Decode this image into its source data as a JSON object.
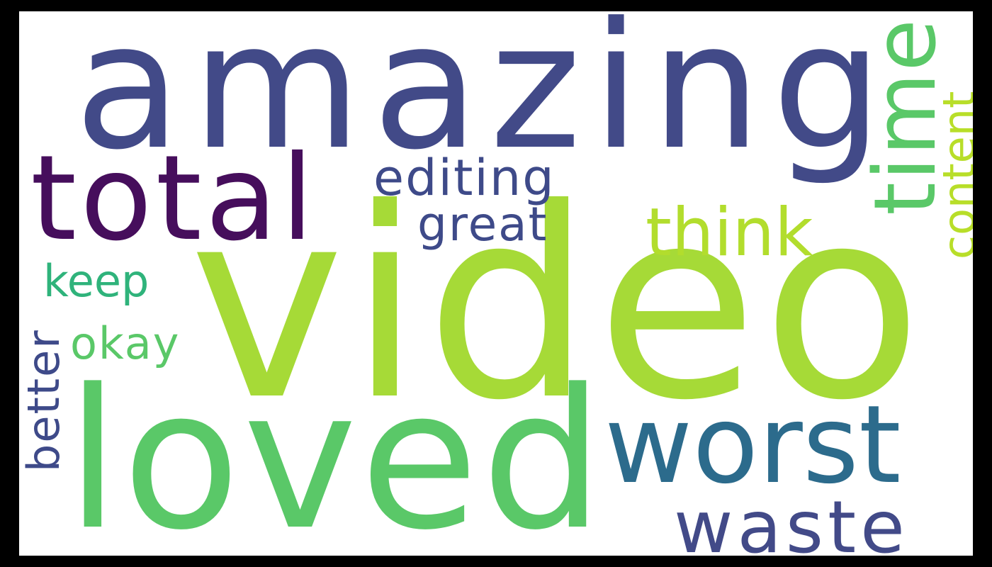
{
  "words": {
    "amazing": {
      "text": "amazing",
      "color": "#424a88"
    },
    "video": {
      "text": "video",
      "color": "#a6da37"
    },
    "loved": {
      "text": "loved",
      "color": "#5ac868"
    },
    "total": {
      "text": "total",
      "color": "#460e5c"
    },
    "worst": {
      "text": "worst",
      "color": "#2c6b8c"
    },
    "waste": {
      "text": "waste",
      "color": "#424a88"
    },
    "think": {
      "text": "think",
      "color": "#b2dd2d"
    },
    "time": {
      "text": "time",
      "color": "#5ac868"
    },
    "content": {
      "text": "content",
      "color": "#b8de29"
    },
    "editing": {
      "text": "editing",
      "color": "#3e4a89"
    },
    "great": {
      "text": "great",
      "color": "#3e4a89"
    },
    "keep": {
      "text": "keep",
      "color": "#2fb37b"
    },
    "okay": {
      "text": "okay",
      "color": "#5ac868"
    },
    "better": {
      "text": "better",
      "color": "#3e4a89"
    }
  }
}
